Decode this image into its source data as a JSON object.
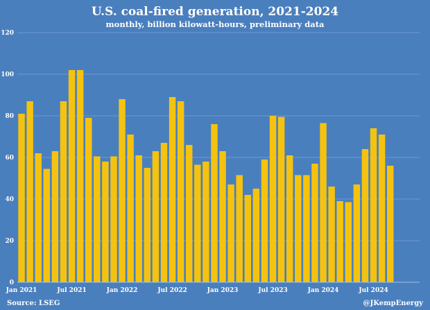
{
  "chart_data": {
    "type": "bar",
    "title": "U.S. coal-fired generation, 2021-2024",
    "subtitle": "monthly, billion kilowatt-hours, preliminary data",
    "ylim": [
      0,
      120
    ],
    "yticks": [
      0,
      20,
      40,
      60,
      80,
      100,
      120
    ],
    "x_tick_labels": [
      "Jan 2021",
      "Jul 2021",
      "Jan 2022",
      "Jul 2022",
      "Jan 2023",
      "Jul 2023",
      "Jan 2024",
      "Jul 2024"
    ],
    "x_tick_months": [
      0,
      6,
      12,
      18,
      24,
      30,
      36,
      42
    ],
    "total_slots": 48,
    "grid": true,
    "colors": {
      "background": "#4a7fbe",
      "bar": "#f5c30f",
      "grid": "#6c98cf",
      "text": "#ffffff"
    },
    "categories": [
      "Jan 2021",
      "Feb 2021",
      "Mar 2021",
      "Apr 2021",
      "May 2021",
      "Jun 2021",
      "Jul 2021",
      "Aug 2021",
      "Sep 2021",
      "Oct 2021",
      "Nov 2021",
      "Dec 2021",
      "Jan 2022",
      "Feb 2022",
      "Mar 2022",
      "Apr 2022",
      "May 2022",
      "Jun 2022",
      "Jul 2022",
      "Aug 2022",
      "Sep 2022",
      "Oct 2022",
      "Nov 2022",
      "Dec 2022",
      "Jan 2023",
      "Feb 2023",
      "Mar 2023",
      "Apr 2023",
      "May 2023",
      "Jun 2023",
      "Jul 2023",
      "Aug 2023",
      "Sep 2023",
      "Oct 2023",
      "Nov 2023",
      "Dec 2023",
      "Jan 2024",
      "Feb 2024",
      "Mar 2024",
      "Apr 2024",
      "May 2024",
      "Jun 2024",
      "Jul 2024",
      "Aug 2024",
      "Sep 2024"
    ],
    "values": [
      81,
      87,
      62,
      54.5,
      63,
      87,
      102,
      102,
      79,
      60.5,
      58,
      60.5,
      88,
      71,
      61,
      55,
      63,
      67,
      89,
      87,
      66,
      56.5,
      58,
      76,
      63,
      47,
      51.5,
      42,
      45,
      59,
      80,
      79.5,
      61,
      51.5,
      51.5,
      57,
      76.5,
      46,
      39,
      38.5,
      47,
      64,
      74,
      71,
      56
    ]
  },
  "footer": {
    "source": "Source: LSEG",
    "credit": "@JKempEnergy"
  }
}
